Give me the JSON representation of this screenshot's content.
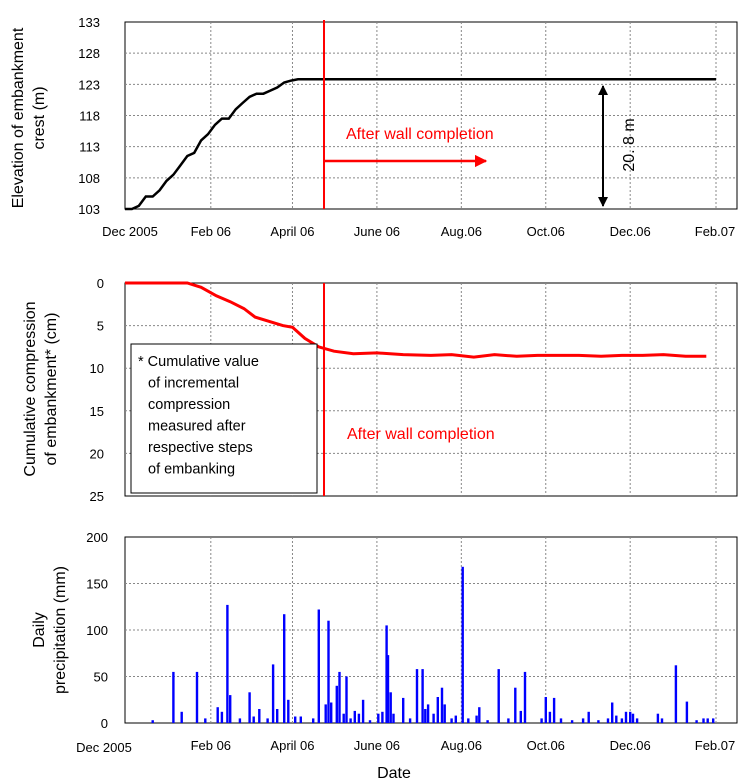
{
  "chart_data": [
    {
      "type": "line",
      "ylabel": [
        "Elevation of embankment",
        "crest  (m)"
      ],
      "ylim": [
        103,
        133
      ],
      "yticks": [
        103,
        108,
        113,
        118,
        123,
        128,
        133
      ],
      "x_tick_labels": [
        "Dec 2005",
        "Feb 06",
        "April 06",
        "June 06",
        "Aug.06",
        "Oct.06",
        "Dec.06",
        "Feb.07"
      ],
      "grid": true,
      "series": [
        {
          "color": "#000000",
          "x": [
            "2005-12-01",
            "2005-12-06",
            "2005-12-11",
            "2005-12-16",
            "2005-12-21",
            "2005-12-26",
            "2005-12-31",
            "2006-01-05",
            "2006-01-10",
            "2006-01-15",
            "2006-01-20",
            "2006-01-25",
            "2006-01-30",
            "2006-02-04",
            "2006-02-09",
            "2006-02-14",
            "2006-02-19",
            "2006-02-24",
            "2006-03-01",
            "2006-03-06",
            "2006-03-11",
            "2006-03-16",
            "2006-03-21",
            "2006-03-26",
            "2006-03-31",
            "2006-04-05",
            "2006-04-10",
            "2006-04-15",
            "2006-04-20",
            "2007-02-01"
          ],
          "values": [
            103,
            103,
            103.5,
            105,
            105,
            106,
            107.5,
            108.5,
            110,
            111.5,
            112,
            114,
            115,
            116.5,
            117.5,
            117.5,
            119,
            120,
            121,
            121.5,
            121.5,
            122,
            122.5,
            123.3,
            123.6,
            123.8,
            123.8,
            123.8,
            123.8,
            123.8
          ]
        }
      ],
      "annotations": [
        {
          "text": "After wall completion",
          "color": "#ff0000"
        },
        {
          "text": "20. 8 m",
          "color": "#000000"
        }
      ]
    },
    {
      "type": "line",
      "ylabel": [
        "Cumulative compression",
        "of embankment* (cm)"
      ],
      "ylim": [
        0,
        25
      ],
      "y_inverted": true,
      "yticks": [
        0,
        5,
        10,
        15,
        20,
        25
      ],
      "grid": true,
      "series": [
        {
          "color": "#ff0000",
          "x": [
            "2005-12-01",
            "2006-01-10",
            "2006-01-15",
            "2006-01-25",
            "2006-02-05",
            "2006-02-15",
            "2006-02-25",
            "2006-03-05",
            "2006-03-15",
            "2006-03-25",
            "2006-04-01",
            "2006-04-10",
            "2006-04-20",
            "2006-05-01",
            "2006-05-15",
            "2006-06-01",
            "2006-06-20",
            "2006-07-10",
            "2006-07-25",
            "2006-08-10",
            "2006-08-25",
            "2006-09-10",
            "2006-09-25",
            "2006-10-10",
            "2006-10-25",
            "2006-11-10",
            "2006-11-25",
            "2006-12-10",
            "2006-12-25",
            "2007-01-10",
            "2007-01-25"
          ],
          "values": [
            0,
            0,
            0,
            0.5,
            1.5,
            2.2,
            3,
            4,
            4.5,
            5,
            5.2,
            6.5,
            7.5,
            8,
            8.3,
            8.2,
            8.4,
            8.5,
            8.4,
            8.7,
            8.4,
            8.6,
            8.5,
            8.5,
            8.5,
            8.6,
            8.5,
            8.5,
            8.4,
            8.6,
            8.6
          ]
        }
      ],
      "note": [
        "* Cumulative value",
        "of incremental",
        "compression",
        "measured after",
        "respective steps",
        "of embanking"
      ],
      "annotation": {
        "text": "After wall completion",
        "color": "#ff0000"
      }
    },
    {
      "type": "bar",
      "ylabel": [
        "Daily",
        "precipitation (mm)"
      ],
      "xlabel": "Date",
      "ylim": [
        0,
        200
      ],
      "yticks": [
        0,
        50,
        100,
        150,
        200
      ],
      "x_tick_labels": [
        "Dec 2005",
        "Feb 06",
        "April 06",
        "June 06",
        "Aug.06",
        "Oct.06",
        "Dec.06",
        "Feb.07"
      ],
      "grid": true,
      "color": "#0000ff",
      "bars": [
        [
          "2005-12-21",
          3
        ],
        [
          "2006-01-05",
          55
        ],
        [
          "2006-01-11",
          12
        ],
        [
          "2006-01-22",
          55
        ],
        [
          "2006-01-28",
          5
        ],
        [
          "2006-02-06",
          17
        ],
        [
          "2006-02-09",
          12
        ],
        [
          "2006-02-13",
          127
        ],
        [
          "2006-02-15",
          30
        ],
        [
          "2006-02-22",
          5
        ],
        [
          "2006-03-01",
          33
        ],
        [
          "2006-03-04",
          7
        ],
        [
          "2006-03-08",
          15
        ],
        [
          "2006-03-14",
          5
        ],
        [
          "2006-03-18",
          63
        ],
        [
          "2006-03-21",
          15
        ],
        [
          "2006-03-26",
          117
        ],
        [
          "2006-03-29",
          25
        ],
        [
          "2006-04-03",
          7
        ],
        [
          "2006-04-07",
          7
        ],
        [
          "2006-04-16",
          5
        ],
        [
          "2006-04-20",
          122
        ],
        [
          "2006-04-25",
          20
        ],
        [
          "2006-04-27",
          110
        ],
        [
          "2006-04-29",
          22
        ],
        [
          "2006-05-03",
          40
        ],
        [
          "2006-05-05",
          55
        ],
        [
          "2006-05-08",
          10
        ],
        [
          "2006-05-10",
          50
        ],
        [
          "2006-05-13",
          5
        ],
        [
          "2006-05-16",
          13
        ],
        [
          "2006-05-19",
          10
        ],
        [
          "2006-05-22",
          25
        ],
        [
          "2006-05-27",
          3
        ],
        [
          "2006-06-02",
          10
        ],
        [
          "2006-06-05",
          12
        ],
        [
          "2006-06-08",
          105
        ],
        [
          "2006-06-09",
          73
        ],
        [
          "2006-06-11",
          33
        ],
        [
          "2006-06-13",
          10
        ],
        [
          "2006-06-20",
          27
        ],
        [
          "2006-06-25",
          5
        ],
        [
          "2006-06-30",
          58
        ],
        [
          "2006-07-04",
          58
        ],
        [
          "2006-07-06",
          15
        ],
        [
          "2006-07-08",
          20
        ],
        [
          "2006-07-12",
          10
        ],
        [
          "2006-07-15",
          28
        ],
        [
          "2006-07-18",
          38
        ],
        [
          "2006-07-20",
          20
        ],
        [
          "2006-07-25",
          5
        ],
        [
          "2006-07-28",
          8
        ],
        [
          "2006-08-02",
          168
        ],
        [
          "2006-08-06",
          5
        ],
        [
          "2006-08-12",
          8
        ],
        [
          "2006-08-14",
          17
        ],
        [
          "2006-08-20",
          3
        ],
        [
          "2006-08-28",
          58
        ],
        [
          "2006-09-04",
          5
        ],
        [
          "2006-09-09",
          38
        ],
        [
          "2006-09-13",
          13
        ],
        [
          "2006-09-16",
          55
        ],
        [
          "2006-09-28",
          5
        ],
        [
          "2006-10-01",
          28
        ],
        [
          "2006-10-04",
          12
        ],
        [
          "2006-10-07",
          27
        ],
        [
          "2006-10-12",
          5
        ],
        [
          "2006-10-20",
          3
        ],
        [
          "2006-10-28",
          5
        ],
        [
          "2006-11-01",
          12
        ],
        [
          "2006-11-08",
          3
        ],
        [
          "2006-11-15",
          5
        ],
        [
          "2006-11-18",
          22
        ],
        [
          "2006-11-21",
          8
        ],
        [
          "2006-11-25",
          5
        ],
        [
          "2006-11-28",
          12
        ],
        [
          "2006-12-01",
          12
        ],
        [
          "2006-12-03",
          10
        ],
        [
          "2006-12-06",
          5
        ],
        [
          "2006-12-21",
          10
        ],
        [
          "2006-12-24",
          5
        ],
        [
          "2007-01-03",
          62
        ],
        [
          "2007-01-11",
          23
        ],
        [
          "2007-01-18",
          3
        ],
        [
          "2007-01-23",
          5
        ],
        [
          "2007-01-26",
          5
        ],
        [
          "2007-01-30",
          5
        ]
      ]
    }
  ]
}
